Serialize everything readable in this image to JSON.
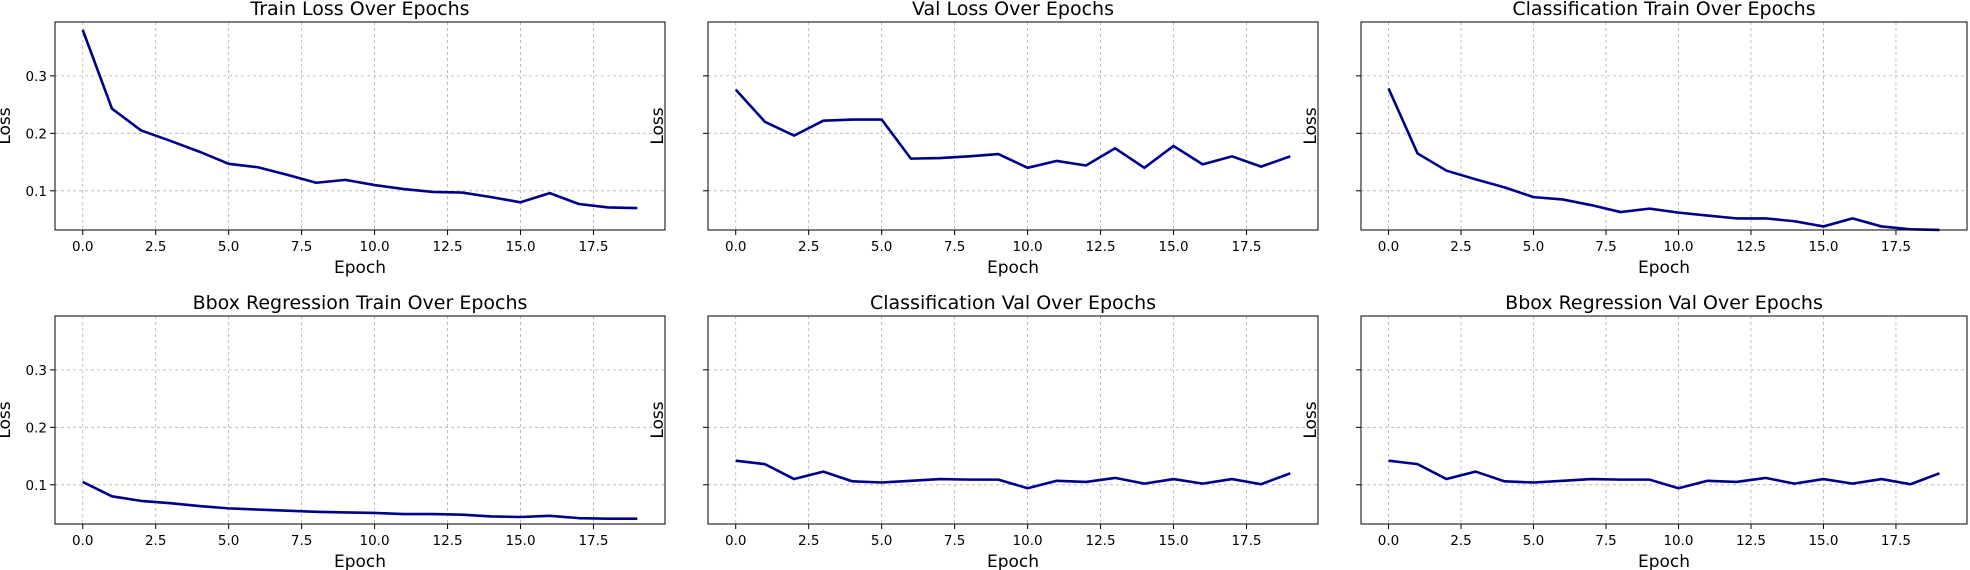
{
  "figure": {
    "line_color": "#00008b",
    "grid": true
  },
  "chart_data": [
    {
      "type": "line",
      "title": "Train Loss Over Epochs",
      "xlabel": "Epoch",
      "ylabel": "Loss",
      "x": [
        0,
        1,
        2,
        3,
        4,
        5,
        6,
        7,
        8,
        9,
        10,
        11,
        12,
        13,
        14,
        15,
        16,
        17,
        18,
        19
      ],
      "series": [
        {
          "values": [
            0.38,
            0.243,
            0.205,
            0.187,
            0.168,
            0.147,
            0.141,
            0.128,
            0.114,
            0.119,
            0.11,
            0.103,
            0.098,
            0.097,
            0.089,
            0.08,
            0.096,
            0.077,
            0.071,
            0.07
          ]
        }
      ],
      "xticks": [
        0.0,
        2.5,
        5.0,
        7.5,
        10.0,
        12.5,
        15.0,
        17.5
      ],
      "xtick_labels": [
        "0.0",
        "2.5",
        "5.0",
        "7.5",
        "10.0",
        "12.5",
        "15.0",
        "17.5"
      ],
      "yticks": [
        0.1,
        0.2,
        0.3
      ],
      "ytick_labels": [
        "0.1",
        "0.2",
        "0.3"
      ],
      "xlim": [
        -0.95,
        19.95
      ],
      "ylim": [
        0.0318,
        0.3937
      ]
    },
    {
      "type": "line",
      "title": "Val Loss Over Epochs",
      "xlabel": "Epoch",
      "ylabel": "Loss",
      "x": [
        0,
        1,
        2,
        3,
        4,
        5,
        6,
        7,
        8,
        9,
        10,
        11,
        12,
        13,
        14,
        15,
        16,
        17,
        18,
        19
      ],
      "series": [
        {
          "values": [
            0.276,
            0.22,
            0.196,
            0.222,
            0.224,
            0.224,
            0.156,
            0.157,
            0.16,
            0.164,
            0.14,
            0.152,
            0.144,
            0.174,
            0.14,
            0.178,
            0.146,
            0.16,
            0.142,
            0.16
          ]
        }
      ],
      "xticks": [
        0.0,
        2.5,
        5.0,
        7.5,
        10.0,
        12.5,
        15.0,
        17.5
      ],
      "xtick_labels": [
        "0.0",
        "2.5",
        "5.0",
        "7.5",
        "10.0",
        "12.5",
        "15.0",
        "17.5"
      ],
      "yticks": [
        0.1,
        0.2,
        0.3
      ],
      "ytick_labels": [
        "",
        "",
        ""
      ],
      "xlim": [
        -0.95,
        19.95
      ],
      "ylim": [
        0.0318,
        0.3937
      ]
    },
    {
      "type": "line",
      "title": "Classification Train Over Epochs",
      "xlabel": "Epoch",
      "ylabel": "Loss",
      "x": [
        0,
        1,
        2,
        3,
        4,
        5,
        6,
        7,
        8,
        9,
        10,
        11,
        12,
        13,
        14,
        15,
        16,
        17,
        18,
        19
      ],
      "series": [
        {
          "values": [
            0.278,
            0.165,
            0.135,
            0.12,
            0.106,
            0.089,
            0.085,
            0.075,
            0.063,
            0.069,
            0.062,
            0.057,
            0.052,
            0.052,
            0.047,
            0.038,
            0.052,
            0.038,
            0.033,
            0.032
          ]
        }
      ],
      "xticks": [
        0.0,
        2.5,
        5.0,
        7.5,
        10.0,
        12.5,
        15.0,
        17.5
      ],
      "xtick_labels": [
        "0.0",
        "2.5",
        "5.0",
        "7.5",
        "10.0",
        "12.5",
        "15.0",
        "17.5"
      ],
      "yticks": [
        0.1,
        0.2,
        0.3
      ],
      "ytick_labels": [
        "",
        "",
        ""
      ],
      "xlim": [
        -0.95,
        19.95
      ],
      "ylim": [
        0.0318,
        0.3937
      ]
    },
    {
      "type": "line",
      "title": "Bbox Regression Train Over Epochs",
      "xlabel": "Epoch",
      "ylabel": "Loss",
      "x": [
        0,
        1,
        2,
        3,
        4,
        5,
        6,
        7,
        8,
        9,
        10,
        11,
        12,
        13,
        14,
        15,
        16,
        17,
        18,
        19
      ],
      "series": [
        {
          "values": [
            0.105,
            0.08,
            0.072,
            0.068,
            0.063,
            0.059,
            0.057,
            0.055,
            0.053,
            0.052,
            0.051,
            0.049,
            0.049,
            0.048,
            0.045,
            0.044,
            0.046,
            0.042,
            0.041,
            0.041
          ]
        }
      ],
      "xticks": [
        0.0,
        2.5,
        5.0,
        7.5,
        10.0,
        12.5,
        15.0,
        17.5
      ],
      "xtick_labels": [
        "0.0",
        "2.5",
        "5.0",
        "7.5",
        "10.0",
        "12.5",
        "15.0",
        "17.5"
      ],
      "yticks": [
        0.1,
        0.2,
        0.3
      ],
      "ytick_labels": [
        "0.1",
        "0.2",
        "0.3"
      ],
      "xlim": [
        -0.95,
        19.95
      ],
      "ylim": [
        0.0318,
        0.3937
      ]
    },
    {
      "type": "line",
      "title": "Classification Val Over Epochs",
      "xlabel": "Epoch",
      "ylabel": "Loss",
      "x": [
        0,
        1,
        2,
        3,
        4,
        5,
        6,
        7,
        8,
        9,
        10,
        11,
        12,
        13,
        14,
        15,
        16,
        17,
        18,
        19
      ],
      "series": [
        {
          "values": [
            0.142,
            0.136,
            0.11,
            0.123,
            0.106,
            0.104,
            0.107,
            0.11,
            0.109,
            0.109,
            0.094,
            0.107,
            0.105,
            0.112,
            0.102,
            0.11,
            0.102,
            0.11,
            0.101,
            0.12
          ]
        }
      ],
      "xticks": [
        0.0,
        2.5,
        5.0,
        7.5,
        10.0,
        12.5,
        15.0,
        17.5
      ],
      "xtick_labels": [
        "0.0",
        "2.5",
        "5.0",
        "7.5",
        "10.0",
        "12.5",
        "15.0",
        "17.5"
      ],
      "yticks": [
        0.1,
        0.2,
        0.3
      ],
      "ytick_labels": [
        "",
        "",
        ""
      ],
      "xlim": [
        -0.95,
        19.95
      ],
      "ylim": [
        0.0318,
        0.3937
      ]
    },
    {
      "type": "line",
      "title": "Bbox Regression Val Over Epochs",
      "xlabel": "Epoch",
      "ylabel": "Loss",
      "x": [
        0,
        1,
        2,
        3,
        4,
        5,
        6,
        7,
        8,
        9,
        10,
        11,
        12,
        13,
        14,
        15,
        16,
        17,
        18,
        19
      ],
      "series": [
        {
          "values": [
            0.142,
            0.136,
            0.11,
            0.123,
            0.106,
            0.104,
            0.107,
            0.11,
            0.109,
            0.109,
            0.094,
            0.107,
            0.105,
            0.112,
            0.102,
            0.11,
            0.102,
            0.11,
            0.101,
            0.12
          ]
        }
      ],
      "xticks": [
        0.0,
        2.5,
        5.0,
        7.5,
        10.0,
        12.5,
        15.0,
        17.5
      ],
      "xtick_labels": [
        "0.0",
        "2.5",
        "5.0",
        "7.5",
        "10.0",
        "12.5",
        "15.0",
        "17.5"
      ],
      "yticks": [
        0.1,
        0.2,
        0.3
      ],
      "ytick_labels": [
        "",
        "",
        ""
      ],
      "xlim": [
        -0.95,
        19.95
      ],
      "ylim": [
        0.0318,
        0.3937
      ]
    }
  ]
}
